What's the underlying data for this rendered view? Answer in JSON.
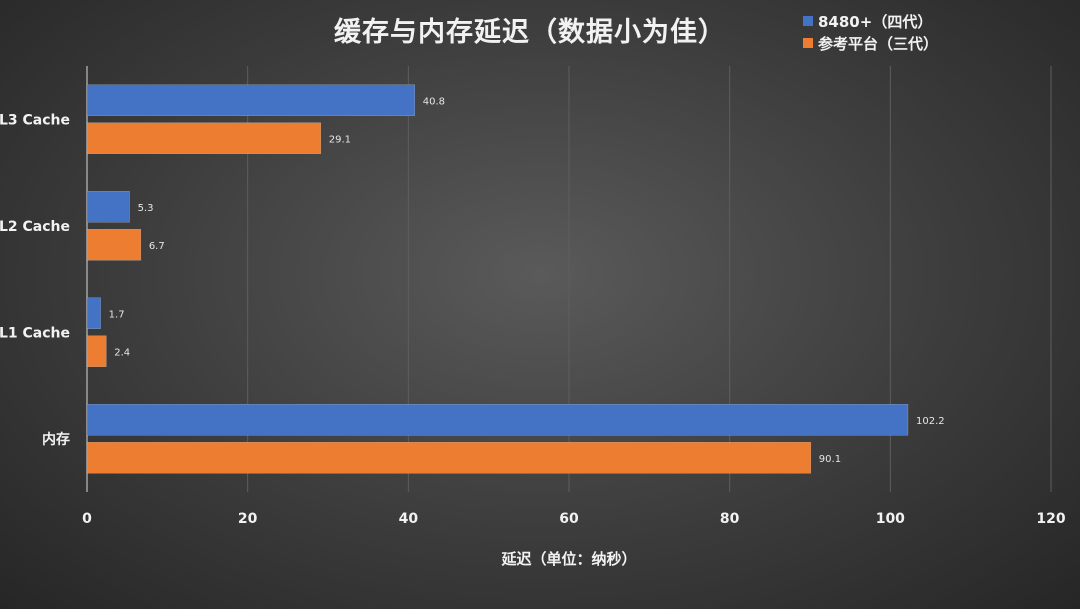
{
  "chart_data": {
    "type": "bar",
    "orientation": "horizontal",
    "title": "缓存与内存延迟（数据小为佳）",
    "categories": [
      "L3 Cache",
      "L2 Cache",
      "L1 Cache",
      "内存"
    ],
    "series": [
      {
        "name": "8480+（四代）",
        "color": "#4472c4",
        "values": [
          40.8,
          5.3,
          1.7,
          102.2
        ]
      },
      {
        "name": "参考平台（三代）",
        "color": "#ed7d31",
        "values": [
          29.1,
          6.7,
          2.4,
          90.1
        ]
      }
    ],
    "xlabel": "延迟（单位：纳秒）",
    "ylabel": "",
    "xlim": [
      0,
      120
    ],
    "xticks": [
      0,
      20,
      40,
      60,
      80,
      100,
      120
    ],
    "grid": true,
    "legend_position": "top-right"
  }
}
